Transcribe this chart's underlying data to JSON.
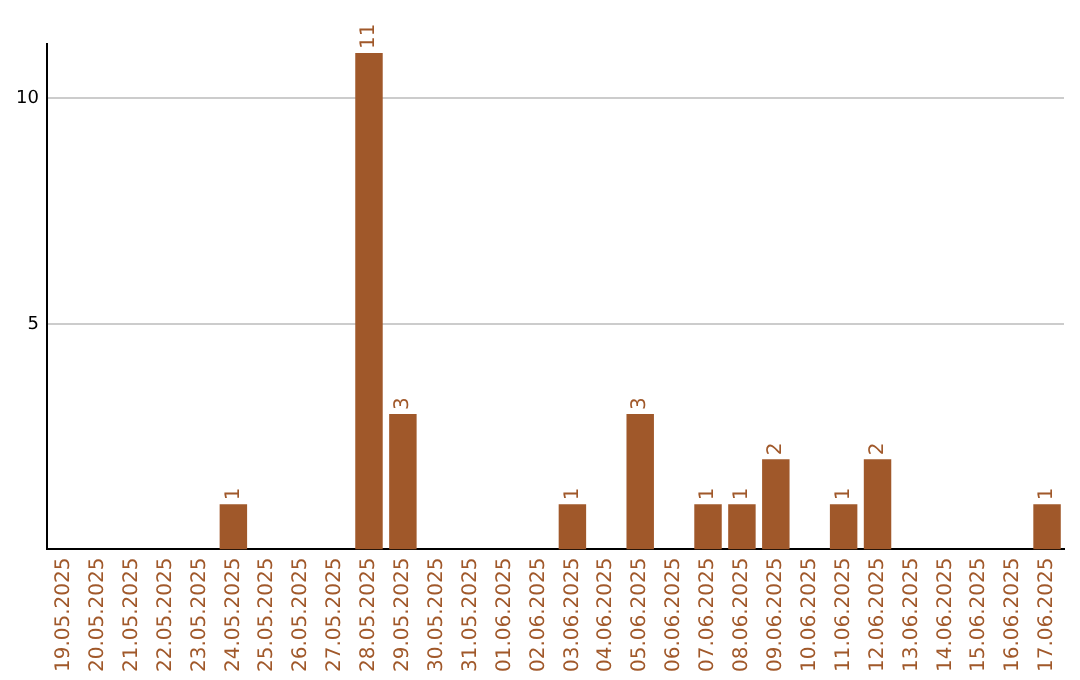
{
  "chart_data": {
    "type": "bar",
    "categories": [
      "19.05.2025",
      "20.05.2025",
      "21.05.2025",
      "22.05.2025",
      "23.05.2025",
      "24.05.2025",
      "25.05.2025",
      "26.05.2025",
      "27.05.2025",
      "28.05.2025",
      "29.05.2025",
      "30.05.2025",
      "31.05.2025",
      "01.06.2025",
      "02.06.2025",
      "03.06.2025",
      "04.06.2025",
      "05.06.2025",
      "06.06.2025",
      "07.06.2025",
      "08.06.2025",
      "09.06.2025",
      "10.06.2025",
      "11.06.2025",
      "12.06.2025",
      "13.06.2025",
      "14.06.2025",
      "15.06.2025",
      "16.06.2025",
      "17.06.2025"
    ],
    "values": [
      0,
      0,
      0,
      0,
      0,
      1,
      0,
      0,
      0,
      11,
      3,
      0,
      0,
      0,
      0,
      1,
      0,
      3,
      0,
      1,
      1,
      2,
      0,
      1,
      2,
      0,
      0,
      0,
      0,
      1
    ],
    "value_labels": [
      null,
      null,
      null,
      null,
      null,
      "1",
      null,
      null,
      null,
      "11",
      "3",
      null,
      null,
      null,
      null,
      "1",
      null,
      "3",
      null,
      "1",
      "1",
      "2",
      null,
      "1",
      "2",
      null,
      null,
      null,
      null,
      "1"
    ],
    "color": "#a0582a",
    "ylim": [
      0,
      11.2
    ],
    "yticks": [
      5,
      10
    ],
    "grid": "y",
    "legend": false
  }
}
